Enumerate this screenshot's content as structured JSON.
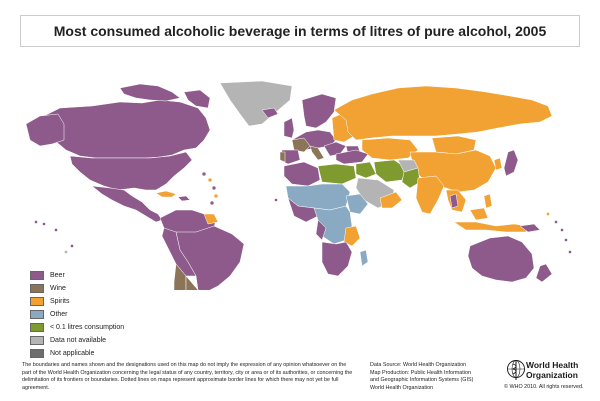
{
  "title": "Most consumed alcoholic beverage in terms of litres of pure alcohol, 2005",
  "colors": {
    "beer": "#8e5a8b",
    "wine": "#8b7458",
    "spirits": "#f2a233",
    "other": "#8aaac4",
    "low": "#7f9a2e",
    "na_data": "#b4b4b4",
    "not_applicable": "#6e6e6e",
    "border": "#ffffff",
    "ocean": "#ffffff"
  },
  "legend": [
    {
      "label": "Beer",
      "color": "#8e5a8b"
    },
    {
      "label": "Wine",
      "color": "#8b7458"
    },
    {
      "label": "Spirits",
      "color": "#f2a233"
    },
    {
      "label": "Other",
      "color": "#8aaac4"
    },
    {
      "label": "< 0.1 litres consumption",
      "color": "#7f9a2e"
    },
    {
      "label": "Data not available",
      "color": "#b4b4b4"
    },
    {
      "label": "Not applicable",
      "color": "#6e6e6e"
    }
  ],
  "disclaimer": "The boundaries and names shown and the designations used on this map do not imply the expression of any opinion whatsoever on the part of the World Health Organization concerning the legal status of any country, territory, city or area or of its authorities, or concerning the delimitation of its frontiers or boundaries.  Dotted lines on maps represent approximate border lines for which there may not yet be full agreement.",
  "source": {
    "line1": "Data Source: World Health Organization",
    "line2": "Map Production: Public Health Information",
    "line3": "and Geographic Information Systems (GIS)",
    "line4": "World Health Organization"
  },
  "who": {
    "name_line1": "World Health",
    "name_line2": "Organization",
    "copyright": "© WHO 2010. All rights reserved."
  }
}
